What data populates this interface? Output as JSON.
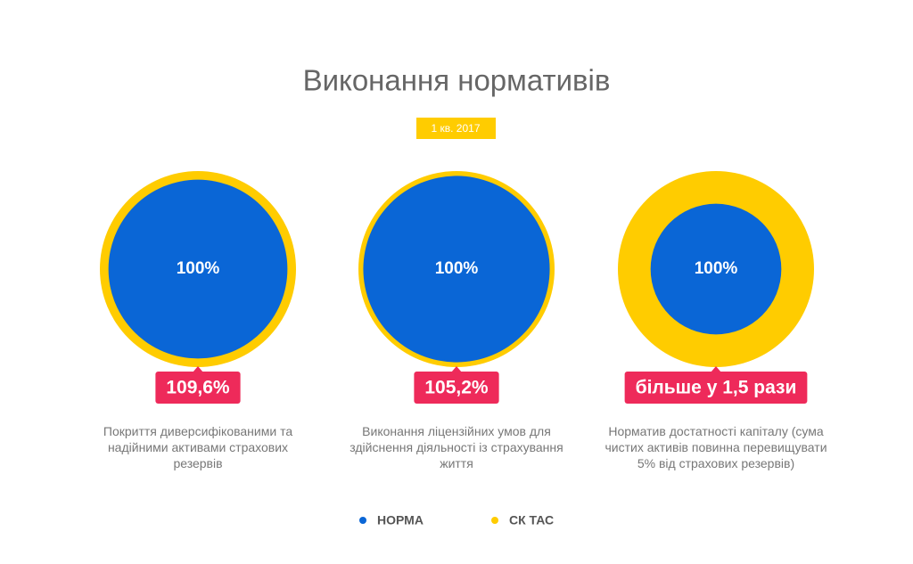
{
  "chart_data": {
    "type": "circles",
    "title": "Виконання нормативів",
    "subtitle": "1 кв. 2017",
    "categories": [
      "Покриття диверсифікованими та надійними активами страхових резервів",
      "Виконання ліцензійних умов для здійснення діяльності із страхування життя",
      "Норматив достатності капіталу (сума чистих активів повинна перевищувати 5% від страхових резервів)"
    ],
    "series": [
      {
        "name": "НОРМА",
        "color": "#0a66d6",
        "values": [
          100,
          100,
          100
        ],
        "value_labels": [
          "100%",
          "100%",
          "100%"
        ]
      },
      {
        "name": "СК ТАС",
        "color": "#ffcc00",
        "values": [
          109.6,
          105.2,
          150
        ],
        "value_labels": [
          "109,6%",
          "105,2%",
          "більше у 1,5 рази"
        ]
      }
    ]
  }
}
